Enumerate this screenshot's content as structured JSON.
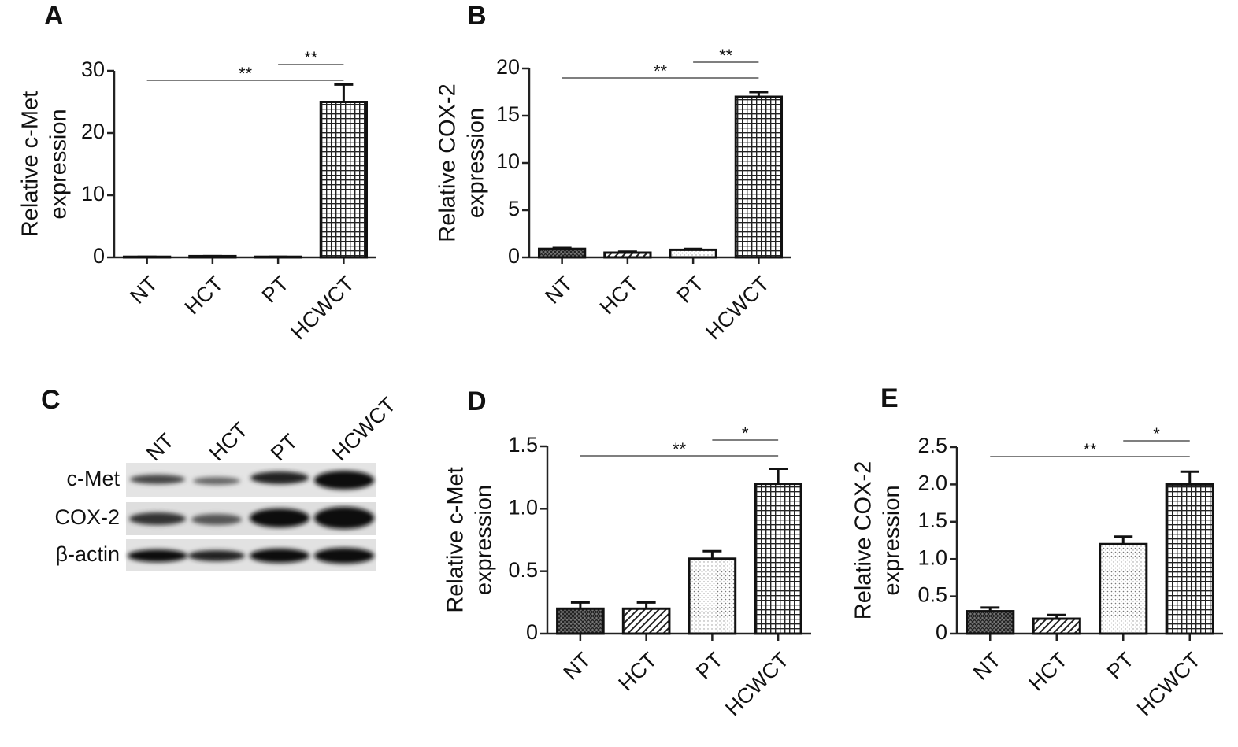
{
  "chart_data": [
    {
      "type": "bar",
      "panel": "A",
      "ylabel": [
        "Relative  c-Met",
        "expression"
      ],
      "categories": [
        "NT",
        "HCT",
        "PT",
        "HCWCT"
      ],
      "values": [
        0.1,
        0.2,
        0.1,
        25
      ],
      "errors": [
        0,
        0,
        0,
        2.8
      ],
      "fills": [
        "crosshatch",
        "hatch",
        "dots",
        "grid"
      ],
      "ylim": [
        0,
        30
      ],
      "yticks": [
        0,
        10,
        20,
        30
      ],
      "annotations": [
        {
          "text": "**",
          "from": 0,
          "to": 3
        },
        {
          "text": "**",
          "from": 2,
          "to": 3
        }
      ]
    },
    {
      "type": "bar",
      "panel": "B",
      "ylabel": [
        "Relative COX-2",
        "expression"
      ],
      "categories": [
        "NT",
        "HCT",
        "PT",
        "HCWCT"
      ],
      "values": [
        0.9,
        0.5,
        0.8,
        17
      ],
      "errors": [
        0.1,
        0.1,
        0.1,
        0.5
      ],
      "fills": [
        "crosshatch",
        "hatch",
        "dots",
        "grid"
      ],
      "ylim": [
        0,
        20
      ],
      "yticks": [
        0,
        5,
        10,
        15,
        20
      ],
      "annotations": [
        {
          "text": "**",
          "from": 0,
          "to": 3
        },
        {
          "text": "**",
          "from": 2,
          "to": 3
        }
      ]
    },
    {
      "type": "bar",
      "panel": "D",
      "ylabel": [
        "Relative  c-Met",
        "expression"
      ],
      "categories": [
        "NT",
        "HCT",
        "PT",
        "HCWCT"
      ],
      "values": [
        0.2,
        0.2,
        0.6,
        1.2
      ],
      "errors": [
        0.05,
        0.05,
        0.06,
        0.12
      ],
      "fills": [
        "crosshatch",
        "hatch",
        "dots",
        "grid"
      ],
      "ylim": [
        0,
        1.5
      ],
      "yticks": [
        0,
        0.5,
        {
          "value": 1,
          "label": "1.0"
        },
        1.5
      ],
      "annotations": [
        {
          "text": "**",
          "from": 0,
          "to": 3
        },
        {
          "text": "*",
          "from": 2,
          "to": 3
        }
      ]
    },
    {
      "type": "bar",
      "panel": "E",
      "ylabel": [
        "Relative COX-2",
        "expression"
      ],
      "categories": [
        "NT",
        "HCT",
        "PT",
        "HCWCT"
      ],
      "values": [
        0.3,
        0.2,
        1.2,
        2.0
      ],
      "errors": [
        0.05,
        0.05,
        0.1,
        0.17
      ],
      "fills": [
        "crosshatch",
        "hatch",
        "dots",
        "grid"
      ],
      "ylim": [
        0,
        2.5
      ],
      "yticks": [
        0,
        0.5,
        {
          "value": 1,
          "label": "1.0"
        },
        1.5,
        {
          "value": 2,
          "label": "2.0"
        },
        2.5
      ],
      "annotations": [
        {
          "text": "**",
          "from": 0,
          "to": 3
        },
        {
          "text": "*",
          "from": 2,
          "to": 3
        }
      ]
    }
  ],
  "blot": {
    "panel": "C",
    "lanes": [
      "NT",
      "HCT",
      "PT",
      "HCWCT"
    ],
    "rows": [
      "c-Met",
      "COX-2",
      "β-actin"
    ]
  }
}
